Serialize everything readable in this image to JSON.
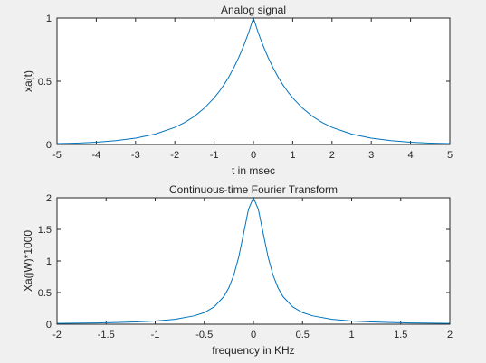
{
  "chart_data": [
    {
      "type": "line",
      "title": "Analog signal",
      "xlabel": "t in msec",
      "ylabel": "xa(t)",
      "xlim": [
        -5,
        5
      ],
      "ylim": [
        0,
        1
      ],
      "xticks": [
        "-5",
        "-4",
        "-3",
        "-2",
        "-1",
        "0",
        "1",
        "2",
        "3",
        "4",
        "5"
      ],
      "yticks": [
        "0",
        "0.5",
        "1"
      ],
      "grid": false,
      "line_color": "#0072bd",
      "series": [
        {
          "x": [
            -5,
            -4.5,
            -4,
            -3.5,
            -3,
            -2.5,
            -2,
            -1.75,
            -1.5,
            -1.25,
            -1,
            -0.875,
            -0.75,
            -0.625,
            -0.5,
            -0.375,
            -0.25,
            -0.125,
            0,
            0.125,
            0.25,
            0.375,
            0.5,
            0.625,
            0.75,
            0.875,
            1,
            1.25,
            1.5,
            1.75,
            2,
            2.5,
            3,
            3.5,
            4,
            4.5,
            5
          ],
          "values": [
            0.007,
            0.011,
            0.018,
            0.03,
            0.05,
            0.082,
            0.135,
            0.174,
            0.223,
            0.287,
            0.368,
            0.417,
            0.472,
            0.535,
            0.607,
            0.687,
            0.779,
            0.882,
            1.0,
            0.882,
            0.779,
            0.687,
            0.607,
            0.535,
            0.472,
            0.417,
            0.368,
            0.287,
            0.223,
            0.174,
            0.135,
            0.082,
            0.05,
            0.03,
            0.018,
            0.011,
            0.007
          ]
        }
      ]
    },
    {
      "type": "line",
      "title": "Continuous-time Fourier Transform",
      "xlabel": "frequency in KHz",
      "ylabel": "Xa(jW)*1000",
      "xlim": [
        -2,
        2
      ],
      "ylim": [
        0,
        2
      ],
      "xticks": [
        "-2",
        "-1.5",
        "-1",
        "-0.5",
        "0",
        "0.5",
        "1",
        "1.5",
        "2"
      ],
      "yticks": [
        "0",
        "0.5",
        "1",
        "1.5",
        "2"
      ],
      "grid": false,
      "line_color": "#0072bd",
      "series": [
        {
          "x": [
            -2,
            -1.8,
            -1.6,
            -1.4,
            -1.2,
            -1.0,
            -0.8,
            -0.6,
            -0.5,
            -0.4,
            -0.3,
            -0.25,
            -0.2,
            -0.15,
            -0.1,
            -0.05,
            0,
            0.05,
            0.1,
            0.15,
            0.2,
            0.25,
            0.3,
            0.4,
            0.5,
            0.6,
            0.8,
            1.0,
            1.2,
            1.4,
            1.6,
            1.8,
            2
          ],
          "values": [
            0.013,
            0.016,
            0.02,
            0.026,
            0.035,
            0.05,
            0.077,
            0.133,
            0.184,
            0.274,
            0.439,
            0.577,
            0.775,
            1.058,
            1.434,
            1.818,
            2.0,
            1.818,
            1.434,
            1.058,
            0.775,
            0.577,
            0.439,
            0.274,
            0.184,
            0.133,
            0.077,
            0.05,
            0.035,
            0.026,
            0.02,
            0.016,
            0.013
          ]
        }
      ]
    }
  ]
}
